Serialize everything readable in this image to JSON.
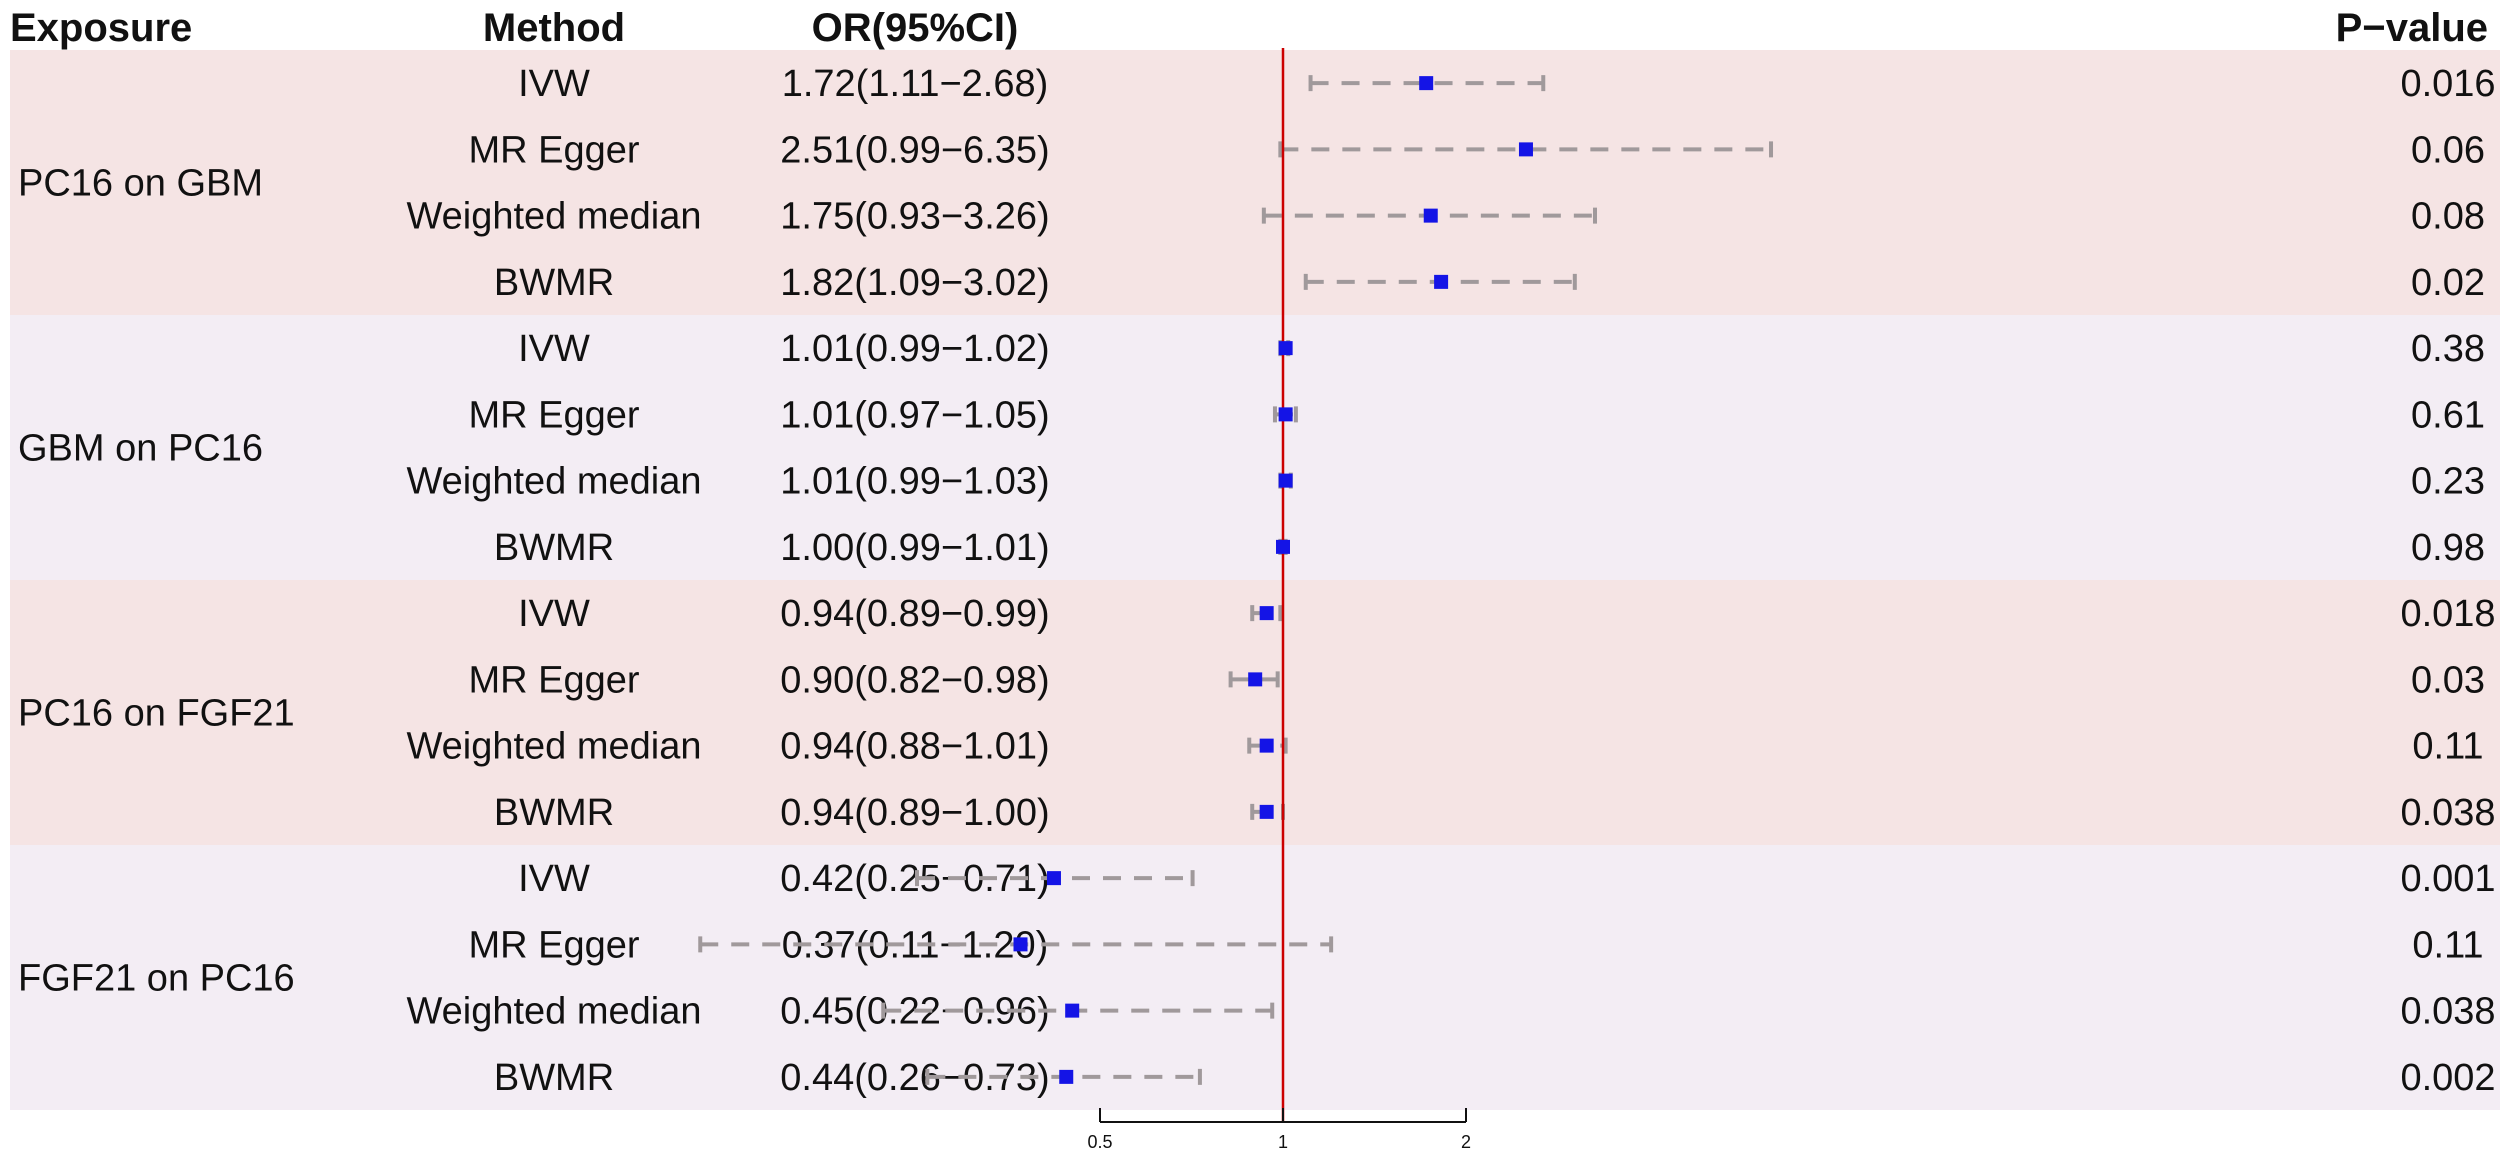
{
  "headers": {
    "exposure": "Exposure",
    "method": "Method",
    "or": "OR(95%CI)",
    "pvalue": "P−value"
  },
  "colors": {
    "band_a": "#f5e4e4",
    "band_b": "#f3edf4",
    "point": "#1414e6",
    "ci": "#a0999b",
    "reference_line": "#cc0000",
    "axis": "#111111"
  },
  "chart_data": {
    "type": "forest",
    "scale": "log",
    "xlim": [
      0.34,
      15
    ],
    "reference_value": 1,
    "x_ticks": [
      {
        "value": 0.5,
        "label": "0.5"
      },
      {
        "value": 1,
        "label": "1"
      },
      {
        "value": 2,
        "label": "2"
      }
    ],
    "groups": [
      {
        "exposure": "PC16 on GBM",
        "band": "band_a",
        "rows": [
          {
            "method": "IVW",
            "or_text": "1.72(1.11−2.68)",
            "or": 1.72,
            "lo": 1.11,
            "hi": 2.68,
            "p": "0.016"
          },
          {
            "method": "MR Egger",
            "or_text": "2.51(0.99−6.35)",
            "or": 2.51,
            "lo": 0.99,
            "hi": 6.35,
            "p": "0.06"
          },
          {
            "method": "Weighted median",
            "or_text": "1.75(0.93−3.26)",
            "or": 1.75,
            "lo": 0.93,
            "hi": 3.26,
            "p": "0.08"
          },
          {
            "method": "BWMR",
            "or_text": "1.82(1.09−3.02)",
            "or": 1.82,
            "lo": 1.09,
            "hi": 3.02,
            "p": "0.02"
          }
        ]
      },
      {
        "exposure": "GBM on PC16",
        "band": "band_b",
        "rows": [
          {
            "method": "IVW",
            "or_text": "1.01(0.99−1.02)",
            "or": 1.01,
            "lo": 0.99,
            "hi": 1.02,
            "p": "0.38"
          },
          {
            "method": "MR Egger",
            "or_text": "1.01(0.97−1.05)",
            "or": 1.01,
            "lo": 0.97,
            "hi": 1.05,
            "p": "0.61"
          },
          {
            "method": "Weighted median",
            "or_text": "1.01(0.99−1.03)",
            "or": 1.01,
            "lo": 0.99,
            "hi": 1.03,
            "p": "0.23"
          },
          {
            "method": "BWMR",
            "or_text": "1.00(0.99−1.01)",
            "or": 1.0,
            "lo": 0.99,
            "hi": 1.01,
            "p": "0.98"
          }
        ]
      },
      {
        "exposure": "PC16 on FGF21",
        "band": "band_a",
        "rows": [
          {
            "method": "IVW",
            "or_text": "0.94(0.89−0.99)",
            "or": 0.94,
            "lo": 0.89,
            "hi": 0.99,
            "p": "0.018"
          },
          {
            "method": "MR Egger",
            "or_text": "0.90(0.82−0.98)",
            "or": 0.9,
            "lo": 0.82,
            "hi": 0.98,
            "p": "0.03"
          },
          {
            "method": "Weighted median",
            "or_text": "0.94(0.88−1.01)",
            "or": 0.94,
            "lo": 0.88,
            "hi": 1.01,
            "p": "0.11"
          },
          {
            "method": "BWMR",
            "or_text": "0.94(0.89−1.00)",
            "or": 0.94,
            "lo": 0.89,
            "hi": 1.0,
            "p": "0.038"
          }
        ]
      },
      {
        "exposure": "FGF21 on PC16",
        "band": "band_b",
        "rows": [
          {
            "method": "IVW",
            "or_text": "0.42(0.25−0.71)",
            "or": 0.42,
            "lo": 0.25,
            "hi": 0.71,
            "p": "0.001"
          },
          {
            "method": "MR Egger",
            "or_text": "0.37(0.11−1.20)",
            "or": 0.37,
            "lo": 0.11,
            "hi": 1.2,
            "p": "0.11"
          },
          {
            "method": "Weighted median",
            "or_text": "0.45(0.22−0.96)",
            "or": 0.45,
            "lo": 0.22,
            "hi": 0.96,
            "p": "0.038"
          },
          {
            "method": "BWMR",
            "or_text": "0.44(0.26−0.73)",
            "or": 0.44,
            "lo": 0.26,
            "hi": 0.73,
            "p": "0.002"
          }
        ]
      }
    ]
  }
}
